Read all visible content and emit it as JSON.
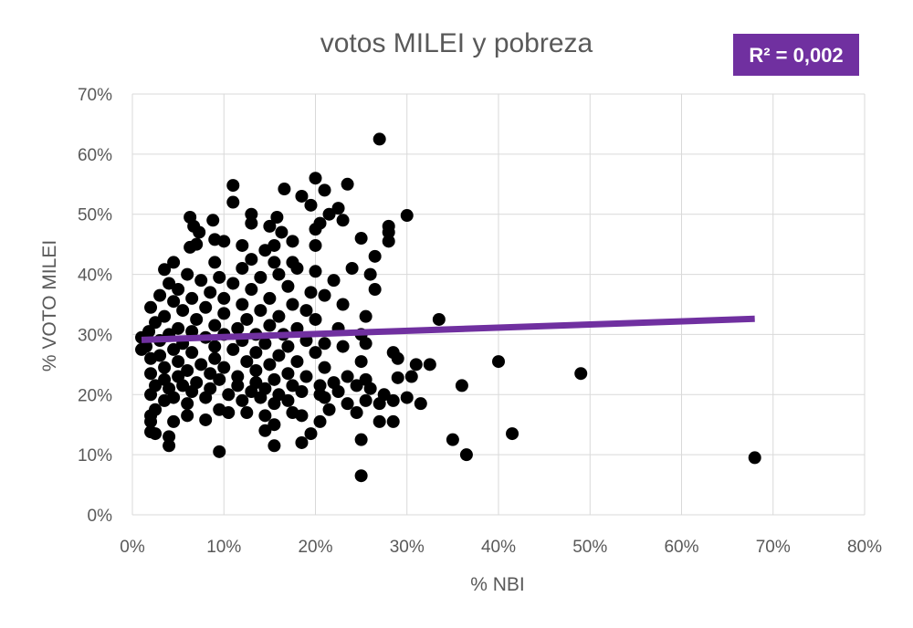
{
  "chart_data": {
    "type": "scatter",
    "title": "votos MILEI  y pobreza",
    "xlabel": "% NBI",
    "ylabel": "% VOTO MILEI",
    "xlim": [
      0,
      0.8
    ],
    "ylim": [
      0,
      0.7
    ],
    "x_ticks": [
      {
        "value": 0,
        "label": "0%"
      },
      {
        "value": 0.1,
        "label": "10%"
      },
      {
        "value": 0.2,
        "label": "20%"
      },
      {
        "value": 0.3,
        "label": "30%"
      },
      {
        "value": 0.4,
        "label": "40%"
      },
      {
        "value": 0.5,
        "label": "50%"
      },
      {
        "value": 0.6,
        "label": "60%"
      },
      {
        "value": 0.7,
        "label": "70%"
      },
      {
        "value": 0.8,
        "label": "80%"
      }
    ],
    "y_ticks": [
      {
        "value": 0,
        "label": "0%"
      },
      {
        "value": 0.1,
        "label": "10%"
      },
      {
        "value": 0.2,
        "label": "20%"
      },
      {
        "value": 0.3,
        "label": "30%"
      },
      {
        "value": 0.4,
        "label": "40%"
      },
      {
        "value": 0.5,
        "label": "50%"
      },
      {
        "value": 0.6,
        "label": "60%"
      },
      {
        "value": 0.7,
        "label": "70%"
      }
    ],
    "grid": true,
    "marker_color": "#000000",
    "trendline": {
      "type": "linear",
      "color": "#7030a0",
      "x_start": 0.01,
      "y_start": 0.291,
      "x_end": 0.68,
      "y_end": 0.326
    },
    "r_squared": {
      "label": "R² = 0,002",
      "background": "#7030a0",
      "text_color": "#ffffff"
    },
    "points": [
      [
        0.27,
        0.625
      ],
      [
        0.2,
        0.56
      ],
      [
        0.11,
        0.548
      ],
      [
        0.166,
        0.542
      ],
      [
        0.235,
        0.55
      ],
      [
        0.21,
        0.54
      ],
      [
        0.185,
        0.53
      ],
      [
        0.11,
        0.52
      ],
      [
        0.195,
        0.515
      ],
      [
        0.225,
        0.51
      ],
      [
        0.13,
        0.5
      ],
      [
        0.215,
        0.5
      ],
      [
        0.3,
        0.498
      ],
      [
        0.158,
        0.495
      ],
      [
        0.063,
        0.495
      ],
      [
        0.088,
        0.49
      ],
      [
        0.23,
        0.49
      ],
      [
        0.205,
        0.485
      ],
      [
        0.13,
        0.485
      ],
      [
        0.067,
        0.48
      ],
      [
        0.15,
        0.48
      ],
      [
        0.28,
        0.48
      ],
      [
        0.073,
        0.47
      ],
      [
        0.163,
        0.47
      ],
      [
        0.2,
        0.475
      ],
      [
        0.28,
        0.47
      ],
      [
        0.1,
        0.455
      ],
      [
        0.25,
        0.46
      ],
      [
        0.175,
        0.455
      ],
      [
        0.07,
        0.45
      ],
      [
        0.09,
        0.458
      ],
      [
        0.155,
        0.448
      ],
      [
        0.12,
        0.448
      ],
      [
        0.28,
        0.455
      ],
      [
        0.2,
        0.448
      ],
      [
        0.063,
        0.445
      ],
      [
        0.145,
        0.44
      ],
      [
        0.13,
        0.425
      ],
      [
        0.045,
        0.42
      ],
      [
        0.175,
        0.42
      ],
      [
        0.265,
        0.43
      ],
      [
        0.09,
        0.42
      ],
      [
        0.155,
        0.42
      ],
      [
        0.18,
        0.41
      ],
      [
        0.12,
        0.41
      ],
      [
        0.035,
        0.408
      ],
      [
        0.2,
        0.405
      ],
      [
        0.24,
        0.41
      ],
      [
        0.16,
        0.4
      ],
      [
        0.06,
        0.4
      ],
      [
        0.095,
        0.395
      ],
      [
        0.26,
        0.4
      ],
      [
        0.14,
        0.395
      ],
      [
        0.075,
        0.39
      ],
      [
        0.04,
        0.385
      ],
      [
        0.11,
        0.385
      ],
      [
        0.22,
        0.39
      ],
      [
        0.17,
        0.38
      ],
      [
        0.05,
        0.375
      ],
      [
        0.085,
        0.37
      ],
      [
        0.13,
        0.375
      ],
      [
        0.265,
        0.375
      ],
      [
        0.195,
        0.37
      ],
      [
        0.03,
        0.365
      ],
      [
        0.065,
        0.36
      ],
      [
        0.1,
        0.36
      ],
      [
        0.15,
        0.36
      ],
      [
        0.21,
        0.365
      ],
      [
        0.045,
        0.355
      ],
      [
        0.12,
        0.35
      ],
      [
        0.175,
        0.35
      ],
      [
        0.23,
        0.35
      ],
      [
        0.02,
        0.345
      ],
      [
        0.08,
        0.345
      ],
      [
        0.14,
        0.34
      ],
      [
        0.055,
        0.34
      ],
      [
        0.19,
        0.34
      ],
      [
        0.1,
        0.335
      ],
      [
        0.035,
        0.33
      ],
      [
        0.16,
        0.33
      ],
      [
        0.255,
        0.33
      ],
      [
        0.07,
        0.325
      ],
      [
        0.125,
        0.325
      ],
      [
        0.2,
        0.325
      ],
      [
        0.335,
        0.325
      ],
      [
        0.025,
        0.32
      ],
      [
        0.09,
        0.315
      ],
      [
        0.15,
        0.315
      ],
      [
        0.05,
        0.31
      ],
      [
        0.115,
        0.31
      ],
      [
        0.18,
        0.31
      ],
      [
        0.225,
        0.31
      ],
      [
        0.018,
        0.305
      ],
      [
        0.065,
        0.305
      ],
      [
        0.135,
        0.3
      ],
      [
        0.04,
        0.3
      ],
      [
        0.1,
        0.3
      ],
      [
        0.165,
        0.3
      ],
      [
        0.25,
        0.3
      ],
      [
        0.01,
        0.295
      ],
      [
        0.08,
        0.295
      ],
      [
        0.12,
        0.29
      ],
      [
        0.03,
        0.29
      ],
      [
        0.19,
        0.29
      ],
      [
        0.055,
        0.285
      ],
      [
        0.145,
        0.285
      ],
      [
        0.21,
        0.285
      ],
      [
        0.255,
        0.285
      ],
      [
        0.015,
        0.28
      ],
      [
        0.09,
        0.28
      ],
      [
        0.17,
        0.28
      ],
      [
        0.045,
        0.275
      ],
      [
        0.11,
        0.275
      ],
      [
        0.01,
        0.275
      ],
      [
        0.23,
        0.28
      ],
      [
        0.285,
        0.27
      ],
      [
        0.065,
        0.27
      ],
      [
        0.135,
        0.27
      ],
      [
        0.2,
        0.27
      ],
      [
        0.03,
        0.265
      ],
      [
        0.16,
        0.265
      ],
      [
        0.09,
        0.26
      ],
      [
        0.02,
        0.26
      ],
      [
        0.125,
        0.255
      ],
      [
        0.05,
        0.255
      ],
      [
        0.18,
        0.255
      ],
      [
        0.25,
        0.255
      ],
      [
        0.29,
        0.26
      ],
      [
        0.075,
        0.25
      ],
      [
        0.15,
        0.25
      ],
      [
        0.035,
        0.245
      ],
      [
        0.1,
        0.245
      ],
      [
        0.21,
        0.245
      ],
      [
        0.4,
        0.255
      ],
      [
        0.06,
        0.24
      ],
      [
        0.135,
        0.24
      ],
      [
        0.02,
        0.235
      ],
      [
        0.17,
        0.235
      ],
      [
        0.085,
        0.235
      ],
      [
        0.31,
        0.25
      ],
      [
        0.325,
        0.25
      ],
      [
        0.05,
        0.23
      ],
      [
        0.115,
        0.23
      ],
      [
        0.19,
        0.23
      ],
      [
        0.235,
        0.23
      ],
      [
        0.29,
        0.228
      ],
      [
        0.305,
        0.23
      ],
      [
        0.49,
        0.235
      ],
      [
        0.035,
        0.225
      ],
      [
        0.095,
        0.225
      ],
      [
        0.155,
        0.225
      ],
      [
        0.07,
        0.22
      ],
      [
        0.135,
        0.22
      ],
      [
        0.22,
        0.22
      ],
      [
        0.255,
        0.225
      ],
      [
        0.36,
        0.215
      ],
      [
        0.025,
        0.215
      ],
      [
        0.055,
        0.215
      ],
      [
        0.115,
        0.215
      ],
      [
        0.175,
        0.215
      ],
      [
        0.205,
        0.215
      ],
      [
        0.245,
        0.215
      ],
      [
        0.04,
        0.21
      ],
      [
        0.085,
        0.21
      ],
      [
        0.145,
        0.21
      ],
      [
        0.26,
        0.21
      ],
      [
        0.065,
        0.205
      ],
      [
        0.13,
        0.205
      ],
      [
        0.185,
        0.205
      ],
      [
        0.225,
        0.205
      ],
      [
        0.02,
        0.2
      ],
      [
        0.105,
        0.2
      ],
      [
        0.16,
        0.2
      ],
      [
        0.205,
        0.2
      ],
      [
        0.275,
        0.2
      ],
      [
        0.045,
        0.195
      ],
      [
        0.08,
        0.195
      ],
      [
        0.14,
        0.195
      ],
      [
        0.21,
        0.195
      ],
      [
        0.3,
        0.195
      ],
      [
        0.035,
        0.19
      ],
      [
        0.12,
        0.19
      ],
      [
        0.17,
        0.19
      ],
      [
        0.255,
        0.19
      ],
      [
        0.285,
        0.19
      ],
      [
        0.315,
        0.185
      ],
      [
        0.06,
        0.185
      ],
      [
        0.155,
        0.185
      ],
      [
        0.235,
        0.185
      ],
      [
        0.27,
        0.185
      ],
      [
        0.025,
        0.175
      ],
      [
        0.095,
        0.175
      ],
      [
        0.175,
        0.17
      ],
      [
        0.215,
        0.175
      ],
      [
        0.245,
        0.17
      ],
      [
        0.02,
        0.165
      ],
      [
        0.105,
        0.17
      ],
      [
        0.06,
        0.165
      ],
      [
        0.125,
        0.17
      ],
      [
        0.145,
        0.165
      ],
      [
        0.185,
        0.165
      ],
      [
        0.02,
        0.155
      ],
      [
        0.045,
        0.155
      ],
      [
        0.08,
        0.158
      ],
      [
        0.155,
        0.15
      ],
      [
        0.205,
        0.155
      ],
      [
        0.27,
        0.155
      ],
      [
        0.285,
        0.155
      ],
      [
        0.02,
        0.138
      ],
      [
        0.145,
        0.14
      ],
      [
        0.195,
        0.135
      ],
      [
        0.025,
        0.135
      ],
      [
        0.04,
        0.13
      ],
      [
        0.415,
        0.135
      ],
      [
        0.04,
        0.115
      ],
      [
        0.155,
        0.115
      ],
      [
        0.185,
        0.12
      ],
      [
        0.25,
        0.125
      ],
      [
        0.35,
        0.125
      ],
      [
        0.365,
        0.1
      ],
      [
        0.095,
        0.105
      ],
      [
        0.68,
        0.095
      ],
      [
        0.25,
        0.065
      ]
    ]
  }
}
